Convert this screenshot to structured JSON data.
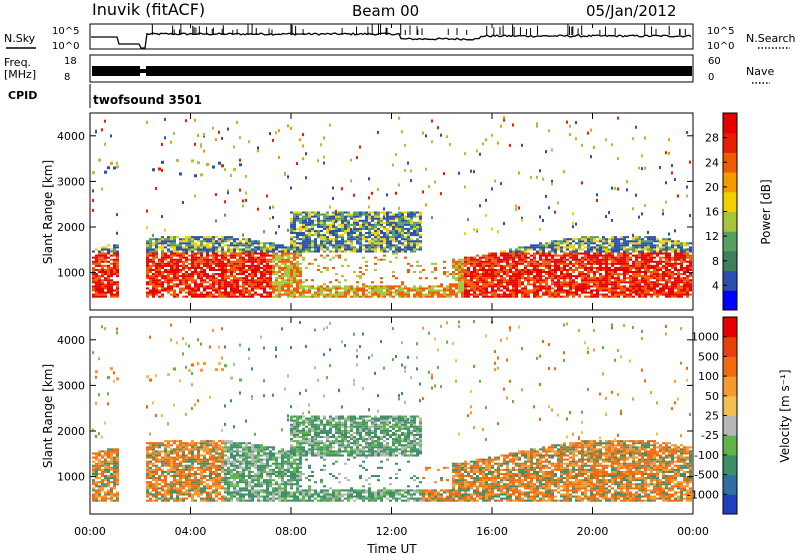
{
  "header": {
    "station": "Inuvik  (fitACF)",
    "beam": "Beam 00",
    "date": "05/Jan/2012"
  },
  "panels": {
    "nsky_label": "N.Sky",
    "nsky_ticks": [
      "10^5",
      "10^0"
    ],
    "nsearch_label": "N.Search",
    "nsearch_ticks": [
      "10^5",
      "10^0"
    ],
    "freq_label_line1": "Freq.",
    "freq_label_line2": "[MHz]",
    "freq_ticks": [
      "18",
      "8"
    ],
    "nave_label": "Nave",
    "nave_ticks": [
      "60",
      "0"
    ],
    "cpid_label": "CPID",
    "cpid_value": "twofsound 3501"
  },
  "chart_data": [
    {
      "type": "heatmap",
      "parameter": "power",
      "ylabel": "Slant Range [km]",
      "yticks": [
        1000,
        2000,
        3000,
        4000
      ],
      "ylim": [
        180,
        4500
      ],
      "xticks": [
        "00:00",
        "04:00",
        "08:00",
        "12:00",
        "16:00",
        "20:00",
        "00:00"
      ],
      "colorbar": {
        "label": "Power [dB]",
        "ticks": [
          "28",
          "24",
          "20",
          "16",
          "12",
          "8",
          "4"
        ],
        "colors": [
          "#0000ff",
          "#2a4fb0",
          "#3f7f5c",
          "#57a05f",
          "#a6c53c",
          "#f1d200",
          "#f39b00",
          "#f05a00",
          "#e81e00",
          "#e60000"
        ]
      }
    },
    {
      "type": "heatmap",
      "parameter": "velocity",
      "ylabel": "Slant Range [km]",
      "yticks": [
        1000,
        2000,
        3000,
        4000
      ],
      "ylim": [
        180,
        4500
      ],
      "xticks": [
        "00:00",
        "04:00",
        "08:00",
        "12:00",
        "16:00",
        "20:00",
        "00:00"
      ],
      "xlabel": "Time UT",
      "colorbar": {
        "label": "Velocity [m s⁻¹]",
        "ticks": [
          "1000",
          "500",
          "100",
          "50",
          "25",
          "-25",
          "-100",
          "-500",
          "-1000"
        ],
        "colors": [
          "#1f3fbf",
          "#2f6fa0",
          "#3d8f68",
          "#61b34a",
          "#b7b7b7",
          "#f3c050",
          "#f39a30",
          "#f06a10",
          "#e8400a",
          "#e60000"
        ]
      }
    }
  ]
}
